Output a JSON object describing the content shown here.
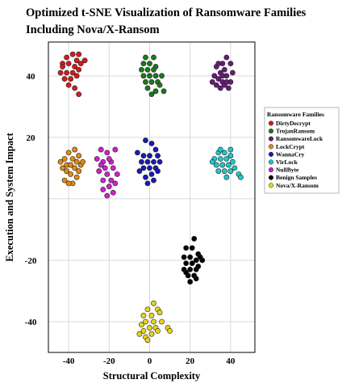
{
  "chart_data": {
    "type": "scatter",
    "title": "Optimized t-SNE Visualization of Ransomware Families Including Nova/X-Ransom",
    "xlabel": "Structural Complexity",
    "ylabel": "Execution and System Impact",
    "xlim": [
      -50,
      52
    ],
    "ylim": [
      -50,
      51
    ],
    "xticks": [
      -40,
      -20,
      0,
      20,
      40
    ],
    "yticks": [
      -40,
      -20,
      20,
      40
    ],
    "grid": true,
    "legend": {
      "title": "Ransomware Families",
      "placement": "right"
    },
    "series": [
      {
        "name": "DirtyDecrypt",
        "color": "#d7191c",
        "points": [
          [
            -41,
            46
          ],
          [
            -38,
            47
          ],
          [
            -35,
            47
          ],
          [
            -32,
            45
          ],
          [
            -43,
            44
          ],
          [
            -40,
            44
          ],
          [
            -37,
            43
          ],
          [
            -34,
            44
          ],
          [
            -44,
            41
          ],
          [
            -41,
            41
          ],
          [
            -38,
            41
          ],
          [
            -35,
            42
          ],
          [
            -42,
            39
          ],
          [
            -39,
            39
          ],
          [
            -36,
            40
          ],
          [
            -40,
            37
          ],
          [
            -37,
            36
          ],
          [
            -35,
            34
          ],
          [
            -43,
            43
          ],
          [
            -36,
            45
          ]
        ]
      },
      {
        "name": "TrojanRansom",
        "color": "#1a7a1a",
        "points": [
          [
            -2,
            46
          ],
          [
            2,
            46
          ],
          [
            -3,
            44
          ],
          [
            0,
            44
          ],
          [
            3,
            43
          ],
          [
            -1,
            42
          ],
          [
            2,
            42
          ],
          [
            -3,
            40
          ],
          [
            0,
            40
          ],
          [
            3,
            40
          ],
          [
            6,
            40
          ],
          [
            -2,
            38
          ],
          [
            1,
            38
          ],
          [
            4,
            38
          ],
          [
            -1,
            36
          ],
          [
            3,
            35
          ],
          [
            7,
            35
          ],
          [
            1,
            34
          ],
          [
            5,
            37
          ],
          [
            -4,
            42
          ]
        ]
      },
      {
        "name": "RansomwareLock",
        "color": "#6a1a7a",
        "points": [
          [
            38,
            46
          ],
          [
            36,
            44
          ],
          [
            40,
            44
          ],
          [
            33,
            43
          ],
          [
            37,
            42
          ],
          [
            35,
            41
          ],
          [
            38,
            40
          ],
          [
            32,
            40
          ],
          [
            34,
            39
          ],
          [
            36,
            38
          ],
          [
            40,
            38
          ],
          [
            33,
            37
          ],
          [
            37,
            37
          ],
          [
            35,
            36
          ],
          [
            39,
            36
          ],
          [
            31,
            38
          ],
          [
            41,
            41
          ],
          [
            34,
            44
          ],
          [
            36,
            40
          ],
          [
            38,
            38
          ]
        ]
      },
      {
        "name": "LockCrypt",
        "color": "#e08a10",
        "points": [
          [
            -37,
            16
          ],
          [
            -40,
            15
          ],
          [
            -35,
            14
          ],
          [
            -42,
            13
          ],
          [
            -38,
            13
          ],
          [
            -36,
            12
          ],
          [
            -44,
            12
          ],
          [
            -41,
            11
          ],
          [
            -39,
            11
          ],
          [
            -34,
            11
          ],
          [
            -43,
            10
          ],
          [
            -37,
            10
          ],
          [
            -35,
            9
          ],
          [
            -41,
            9
          ],
          [
            -39,
            8
          ],
          [
            -36,
            7
          ],
          [
            -42,
            6
          ],
          [
            -38,
            5
          ],
          [
            -40,
            5
          ],
          [
            -33,
            12
          ]
        ]
      },
      {
        "name": "WannaCry",
        "color": "#1a1ab0",
        "points": [
          [
            -2,
            19
          ],
          [
            1,
            18
          ],
          [
            3,
            16
          ],
          [
            -6,
            15
          ],
          [
            -3,
            14
          ],
          [
            0,
            14
          ],
          [
            4,
            14
          ],
          [
            -4,
            12
          ],
          [
            -1,
            12
          ],
          [
            2,
            12
          ],
          [
            5,
            12
          ],
          [
            -3,
            10
          ],
          [
            0,
            10
          ],
          [
            3,
            10
          ],
          [
            -5,
            9
          ],
          [
            1,
            8
          ],
          [
            -2,
            7
          ],
          [
            2,
            6
          ],
          [
            -1,
            5
          ],
          [
            4,
            9
          ]
        ]
      },
      {
        "name": "VirLock",
        "color": "#20c8c8",
        "points": [
          [
            34,
            15
          ],
          [
            37,
            15
          ],
          [
            40,
            14
          ],
          [
            32,
            13
          ],
          [
            35,
            13
          ],
          [
            38,
            13
          ],
          [
            41,
            12
          ],
          [
            33,
            11
          ],
          [
            36,
            11
          ],
          [
            39,
            11
          ],
          [
            42,
            10
          ],
          [
            34,
            9
          ],
          [
            37,
            9
          ],
          [
            40,
            9
          ],
          [
            44,
            8
          ],
          [
            38,
            7
          ],
          [
            45,
            7
          ],
          [
            31,
            12
          ],
          [
            35,
            16
          ],
          [
            40,
            16
          ]
        ]
      },
      {
        "name": "NullByte",
        "color": "#d020d0",
        "points": [
          [
            -24,
            16
          ],
          [
            -17,
            16
          ],
          [
            -21,
            15
          ],
          [
            -26,
            13
          ],
          [
            -23,
            12
          ],
          [
            -19,
            12
          ],
          [
            -22,
            10
          ],
          [
            -18,
            10
          ],
          [
            -25,
            9
          ],
          [
            -21,
            8
          ],
          [
            -19,
            6
          ],
          [
            -23,
            6
          ],
          [
            -17,
            5
          ],
          [
            -20,
            4
          ],
          [
            -23,
            3
          ],
          [
            -18,
            2
          ],
          [
            -21,
            1
          ],
          [
            -24,
            11
          ],
          [
            -20,
            13
          ],
          [
            -16,
            8
          ]
        ]
      },
      {
        "name": "Benign Samples",
        "color": "#000000",
        "points": [
          [
            22,
            -13
          ],
          [
            18,
            -16
          ],
          [
            21,
            -16
          ],
          [
            24,
            -18
          ],
          [
            17,
            -19
          ],
          [
            20,
            -19
          ],
          [
            23,
            -20
          ],
          [
            26,
            -20
          ],
          [
            18,
            -21
          ],
          [
            21,
            -21
          ],
          [
            24,
            -22
          ],
          [
            17,
            -23
          ],
          [
            20,
            -23
          ],
          [
            23,
            -23
          ],
          [
            19,
            -25
          ],
          [
            22,
            -25
          ],
          [
            20,
            -27
          ],
          [
            23,
            -26
          ],
          [
            18,
            -24
          ],
          [
            25,
            -19
          ]
        ]
      },
      {
        "name": "Nova/X-Ransom",
        "color": "#e6d61a",
        "points": [
          [
            2,
            -34
          ],
          [
            -1,
            -36
          ],
          [
            4,
            -36
          ],
          [
            -3,
            -38
          ],
          [
            1,
            -38
          ],
          [
            5,
            -37
          ],
          [
            -2,
            -40
          ],
          [
            2,
            -40
          ],
          [
            6,
            -40
          ],
          [
            -4,
            -41
          ],
          [
            0,
            -42
          ],
          [
            3,
            -42
          ],
          [
            -3,
            -43
          ],
          [
            1,
            -44
          ],
          [
            -5,
            -44
          ],
          [
            -2,
            -45
          ],
          [
            4,
            -43
          ],
          [
            9,
            -42
          ],
          [
            10,
            -43
          ],
          [
            -1,
            -46
          ]
        ]
      }
    ]
  }
}
